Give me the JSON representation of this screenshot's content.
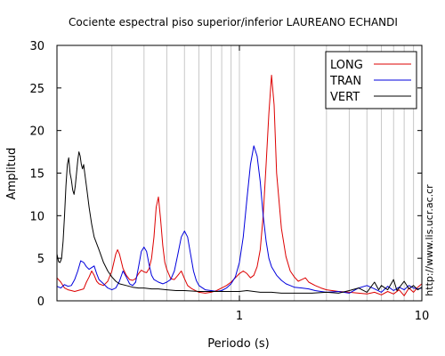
{
  "chart_data": {
    "type": "line",
    "title": "Cociente espectral piso superior/inferior LAUREANO ECHANDI",
    "xlabel": "Periodo (s)",
    "ylabel": "Amplitud",
    "xscale": "log",
    "xlim": [
      0.1,
      10
    ],
    "ylim": [
      0,
      30
    ],
    "xticks": [
      {
        "value": 1,
        "label": "1"
      },
      {
        "value": 10,
        "label": "10"
      }
    ],
    "yticks": [
      {
        "value": 0,
        "label": "0"
      },
      {
        "value": 5,
        "label": "5"
      },
      {
        "value": 10,
        "label": "10"
      },
      {
        "value": 15,
        "label": "15"
      },
      {
        "value": 20,
        "label": "20"
      },
      {
        "value": 25,
        "label": "25"
      },
      {
        "value": 30,
        "label": "30"
      }
    ],
    "grid": "vertical-log",
    "legend_position": "top-right",
    "credit": "http://www.lis.ucr.ac.cr",
    "series": [
      {
        "name": "LONG",
        "color": "#dd0000",
        "points": [
          [
            0.1,
            2.7
          ],
          [
            0.105,
            2.2
          ],
          [
            0.11,
            1.5
          ],
          [
            0.115,
            1.3
          ],
          [
            0.12,
            1.2
          ],
          [
            0.125,
            1.1
          ],
          [
            0.13,
            1.2
          ],
          [
            0.14,
            1.4
          ],
          [
            0.145,
            2.2
          ],
          [
            0.15,
            2.8
          ],
          [
            0.155,
            3.5
          ],
          [
            0.16,
            3.0
          ],
          [
            0.165,
            2.3
          ],
          [
            0.17,
            2.0
          ],
          [
            0.18,
            1.8
          ],
          [
            0.19,
            2.3
          ],
          [
            0.2,
            3.5
          ],
          [
            0.21,
            5.5
          ],
          [
            0.215,
            6.0
          ],
          [
            0.22,
            5.5
          ],
          [
            0.23,
            3.8
          ],
          [
            0.24,
            3.0
          ],
          [
            0.25,
            2.5
          ],
          [
            0.26,
            2.4
          ],
          [
            0.27,
            2.6
          ],
          [
            0.28,
            3.2
          ],
          [
            0.29,
            3.6
          ],
          [
            0.3,
            3.4
          ],
          [
            0.31,
            3.3
          ],
          [
            0.32,
            3.8
          ],
          [
            0.33,
            5.0
          ],
          [
            0.34,
            7.5
          ],
          [
            0.35,
            11.0
          ],
          [
            0.36,
            12.2
          ],
          [
            0.37,
            9.5
          ],
          [
            0.38,
            6.5
          ],
          [
            0.39,
            4.5
          ],
          [
            0.4,
            3.7
          ],
          [
            0.42,
            2.6
          ],
          [
            0.44,
            2.5
          ],
          [
            0.46,
            3.0
          ],
          [
            0.48,
            3.5
          ],
          [
            0.5,
            2.6
          ],
          [
            0.52,
            1.8
          ],
          [
            0.55,
            1.4
          ],
          [
            0.6,
            1.0
          ],
          [
            0.65,
            0.9
          ],
          [
            0.7,
            1.0
          ],
          [
            0.75,
            1.2
          ],
          [
            0.8,
            1.5
          ],
          [
            0.85,
            1.8
          ],
          [
            0.9,
            2.2
          ],
          [
            0.95,
            2.7
          ],
          [
            1.0,
            3.2
          ],
          [
            1.05,
            3.5
          ],
          [
            1.1,
            3.2
          ],
          [
            1.15,
            2.7
          ],
          [
            1.2,
            3.0
          ],
          [
            1.25,
            4.0
          ],
          [
            1.3,
            6.0
          ],
          [
            1.35,
            10.0
          ],
          [
            1.4,
            16.0
          ],
          [
            1.45,
            22.0
          ],
          [
            1.5,
            26.5
          ],
          [
            1.55,
            23.0
          ],
          [
            1.6,
            15.0
          ],
          [
            1.7,
            8.5
          ],
          [
            1.8,
            5.2
          ],
          [
            1.9,
            3.5
          ],
          [
            2.0,
            2.8
          ],
          [
            2.1,
            2.3
          ],
          [
            2.2,
            2.5
          ],
          [
            2.3,
            2.7
          ],
          [
            2.4,
            2.2
          ],
          [
            2.6,
            1.8
          ],
          [
            2.8,
            1.5
          ],
          [
            3.0,
            1.3
          ],
          [
            3.5,
            1.1
          ],
          [
            4.0,
            1.0
          ],
          [
            4.5,
            0.9
          ],
          [
            5.0,
            0.8
          ],
          [
            5.5,
            1.0
          ],
          [
            6.0,
            0.7
          ],
          [
            6.5,
            1.1
          ],
          [
            7.0,
            0.8
          ],
          [
            7.5,
            1.3
          ],
          [
            8.0,
            0.6
          ],
          [
            8.5,
            1.5
          ],
          [
            9.0,
            1.0
          ],
          [
            9.5,
            1.6
          ],
          [
            10.0,
            2.0
          ]
        ]
      },
      {
        "name": "TRAN",
        "color": "#0000dd",
        "points": [
          [
            0.1,
            1.7
          ],
          [
            0.105,
            1.5
          ],
          [
            0.11,
            1.9
          ],
          [
            0.115,
            1.7
          ],
          [
            0.12,
            1.8
          ],
          [
            0.125,
            2.5
          ],
          [
            0.13,
            3.5
          ],
          [
            0.135,
            4.7
          ],
          [
            0.14,
            4.5
          ],
          [
            0.145,
            4.0
          ],
          [
            0.15,
            3.7
          ],
          [
            0.16,
            4.1
          ],
          [
            0.165,
            3.2
          ],
          [
            0.17,
            2.5
          ],
          [
            0.18,
            2.0
          ],
          [
            0.19,
            1.5
          ],
          [
            0.2,
            1.3
          ],
          [
            0.21,
            1.5
          ],
          [
            0.22,
            2.3
          ],
          [
            0.23,
            3.5
          ],
          [
            0.24,
            2.8
          ],
          [
            0.25,
            2.0
          ],
          [
            0.26,
            1.8
          ],
          [
            0.27,
            2.2
          ],
          [
            0.28,
            4.0
          ],
          [
            0.29,
            5.8
          ],
          [
            0.3,
            6.3
          ],
          [
            0.31,
            5.8
          ],
          [
            0.32,
            4.2
          ],
          [
            0.33,
            3.0
          ],
          [
            0.34,
            2.5
          ],
          [
            0.36,
            2.2
          ],
          [
            0.38,
            2.0
          ],
          [
            0.4,
            2.2
          ],
          [
            0.42,
            2.5
          ],
          [
            0.44,
            3.5
          ],
          [
            0.46,
            5.5
          ],
          [
            0.48,
            7.5
          ],
          [
            0.5,
            8.2
          ],
          [
            0.52,
            7.5
          ],
          [
            0.54,
            5.5
          ],
          [
            0.56,
            3.5
          ],
          [
            0.58,
            2.4
          ],
          [
            0.6,
            1.8
          ],
          [
            0.65,
            1.3
          ],
          [
            0.7,
            1.2
          ],
          [
            0.75,
            1.1
          ],
          [
            0.8,
            1.2
          ],
          [
            0.85,
            1.5
          ],
          [
            0.9,
            2.0
          ],
          [
            0.95,
            2.8
          ],
          [
            1.0,
            4.5
          ],
          [
            1.05,
            7.5
          ],
          [
            1.1,
            12.0
          ],
          [
            1.15,
            16.0
          ],
          [
            1.2,
            18.2
          ],
          [
            1.25,
            17.0
          ],
          [
            1.3,
            14.0
          ],
          [
            1.35,
            10.0
          ],
          [
            1.4,
            7.0
          ],
          [
            1.45,
            5.0
          ],
          [
            1.5,
            4.0
          ],
          [
            1.6,
            3.0
          ],
          [
            1.7,
            2.4
          ],
          [
            1.8,
            2.0
          ],
          [
            1.9,
            1.8
          ],
          [
            2.0,
            1.6
          ],
          [
            2.2,
            1.5
          ],
          [
            2.4,
            1.4
          ],
          [
            2.6,
            1.2
          ],
          [
            2.8,
            1.1
          ],
          [
            3.0,
            1.0
          ],
          [
            3.5,
            1.1
          ],
          [
            4.0,
            0.9
          ],
          [
            4.5,
            1.5
          ],
          [
            5.0,
            1.8
          ],
          [
            5.5,
            1.4
          ],
          [
            6.0,
            1.0
          ],
          [
            6.5,
            1.7
          ],
          [
            7.0,
            1.2
          ],
          [
            7.5,
            1.6
          ],
          [
            8.0,
            1.3
          ],
          [
            8.5,
            1.8
          ],
          [
            9.0,
            1.5
          ],
          [
            9.5,
            1.4
          ],
          [
            10.0,
            1.5
          ]
        ]
      },
      {
        "name": "VERT",
        "color": "#000000",
        "points": [
          [
            0.1,
            5.5
          ],
          [
            0.102,
            4.6
          ],
          [
            0.104,
            4.5
          ],
          [
            0.106,
            5.0
          ],
          [
            0.108,
            7.0
          ],
          [
            0.11,
            10.0
          ],
          [
            0.112,
            13.5
          ],
          [
            0.114,
            16.0
          ],
          [
            0.116,
            16.8
          ],
          [
            0.118,
            15.0
          ],
          [
            0.12,
            14.2
          ],
          [
            0.122,
            13.0
          ],
          [
            0.124,
            12.5
          ],
          [
            0.126,
            13.5
          ],
          [
            0.128,
            15.0
          ],
          [
            0.13,
            16.5
          ],
          [
            0.132,
            17.5
          ],
          [
            0.134,
            17.0
          ],
          [
            0.136,
            16.0
          ],
          [
            0.138,
            15.5
          ],
          [
            0.14,
            16.0
          ],
          [
            0.142,
            15.0
          ],
          [
            0.146,
            13.0
          ],
          [
            0.15,
            11.0
          ],
          [
            0.155,
            9.0
          ],
          [
            0.16,
            7.5
          ],
          [
            0.17,
            6.0
          ],
          [
            0.18,
            4.5
          ],
          [
            0.19,
            3.5
          ],
          [
            0.2,
            2.8
          ],
          [
            0.21,
            2.3
          ],
          [
            0.22,
            2.0
          ],
          [
            0.24,
            1.8
          ],
          [
            0.26,
            1.6
          ],
          [
            0.28,
            1.5
          ],
          [
            0.3,
            1.5
          ],
          [
            0.33,
            1.4
          ],
          [
            0.36,
            1.4
          ],
          [
            0.4,
            1.3
          ],
          [
            0.45,
            1.2
          ],
          [
            0.5,
            1.2
          ],
          [
            0.6,
            1.1
          ],
          [
            0.7,
            1.1
          ],
          [
            0.8,
            1.1
          ],
          [
            0.9,
            1.1
          ],
          [
            1.0,
            1.1
          ],
          [
            1.1,
            1.2
          ],
          [
            1.2,
            1.1
          ],
          [
            1.3,
            1.0
          ],
          [
            1.4,
            1.0
          ],
          [
            1.5,
            1.0
          ],
          [
            1.7,
            0.9
          ],
          [
            2.0,
            0.9
          ],
          [
            2.5,
            0.9
          ],
          [
            3.0,
            1.0
          ],
          [
            3.5,
            0.9
          ],
          [
            4.0,
            1.2
          ],
          [
            4.5,
            1.5
          ],
          [
            5.0,
            1.0
          ],
          [
            5.5,
            2.2
          ],
          [
            5.8,
            1.3
          ],
          [
            6.0,
            1.8
          ],
          [
            6.5,
            1.3
          ],
          [
            7.0,
            2.5
          ],
          [
            7.3,
            1.2
          ],
          [
            7.5,
            1.5
          ],
          [
            8.0,
            2.3
          ],
          [
            8.5,
            1.4
          ],
          [
            9.0,
            1.8
          ],
          [
            9.5,
            1.3
          ],
          [
            10.0,
            1.6
          ]
        ]
      }
    ]
  }
}
